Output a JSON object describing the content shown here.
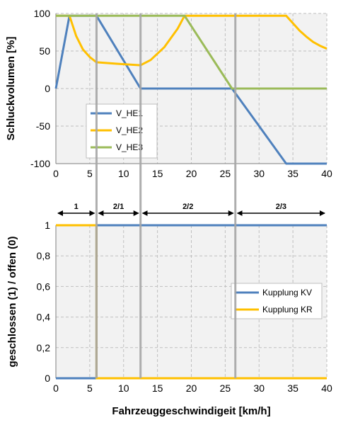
{
  "chart_data": [
    {
      "type": "line",
      "ylabel": "Schluckvolumen [%]",
      "xlim": [
        0,
        40
      ],
      "ylim": [
        -100,
        100
      ],
      "xticks": [
        0,
        5,
        10,
        15,
        20,
        25,
        30,
        35,
        40
      ],
      "yticks": [
        -100,
        -50,
        0,
        50,
        100
      ],
      "grid": true,
      "legend_position": "left",
      "series": [
        {
          "name": "V_HE1",
          "color": "#4f81bd",
          "x": [
            0,
            2,
            6,
            12.5,
            26,
            34,
            40
          ],
          "y": [
            0,
            97,
            97,
            0,
            0,
            -100,
            -100
          ]
        },
        {
          "name": "V_HE2",
          "color": "#ffc000",
          "x": [
            0,
            2,
            3,
            4,
            5,
            6,
            9,
            12.5,
            14,
            16,
            18,
            19,
            22,
            34,
            35,
            36,
            37,
            38,
            39,
            40
          ],
          "y": [
            97,
            97,
            70,
            52,
            42,
            35,
            33,
            31,
            38,
            55,
            80,
            97,
            97,
            97,
            87,
            77,
            69,
            62,
            57,
            53
          ]
        },
        {
          "name": "V_HE3",
          "color": "#9bbb59",
          "x": [
            0,
            19,
            26,
            40
          ],
          "y": [
            97,
            97,
            0,
            0
          ]
        }
      ]
    },
    {
      "type": "line",
      "xlabel": "Fahrzeuggeschwindigeit [km/h]",
      "ylabel": "geschlossen (1) / offen (0)",
      "xlim": [
        0,
        40
      ],
      "ylim": [
        0,
        1
      ],
      "xticks": [
        0,
        5,
        10,
        15,
        20,
        25,
        30,
        35,
        40
      ],
      "ytick_labels": [
        "0",
        "0,2",
        "0,4",
        "0,6",
        "0,8",
        "1"
      ],
      "grid": true,
      "legend_position": "right",
      "series": [
        {
          "name": "Kupplung KV",
          "color": "#4f81bd",
          "x": [
            0,
            6,
            6,
            40
          ],
          "y": [
            0,
            0,
            1,
            1
          ]
        },
        {
          "name": "Kupplung KR",
          "color": "#ffc000",
          "x": [
            0,
            6,
            6,
            40
          ],
          "y": [
            1,
            1,
            0,
            0
          ]
        }
      ]
    }
  ],
  "phases": [
    {
      "label": "1",
      "from": 0,
      "to": 6
    },
    {
      "label": "2/1",
      "from": 6,
      "to": 12.5
    },
    {
      "label": "2/2",
      "from": 12.5,
      "to": 26.5
    },
    {
      "label": "2/3",
      "from": 26.5,
      "to": 40
    }
  ],
  "phase_boundaries": [
    6,
    12.5,
    26.5
  ]
}
